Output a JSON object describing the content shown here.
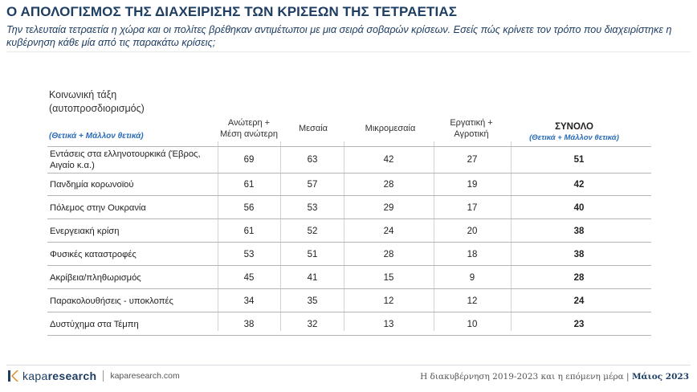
{
  "header": {
    "title": "Ο ΑΠΟΛΟΓΙΣΜΟΣ ΤΗΣ ΔΙΑΧΕΙΡΙΣΗΣ ΤΩΝ ΚΡΙΣΕΩΝ ΤΗΣ ΤΕΤΡΑΕΤΙΑΣ",
    "subtitle": "Την τελευταία τετραετία η χώρα και οι πολίτες βρέθηκαν αντιμέτωποι με μια σειρά σοβαρών κρίσεων. Εσείς πώς κρίνετε τον τρόπο που διαχειρίστηκε η κυβέρνηση κάθε μία από τις παρακάτω κρίσεις;"
  },
  "chart_data": {
    "type": "table",
    "group_title": "Κοινωνική τάξη (αυτοπροσδιορισμός)",
    "metric_note": "(Θετικά + Μάλλον θετικά)",
    "columns": [
      "Ανώτερη + Μέση ανώτερη",
      "Μεσαία",
      "Μικρομεσαία",
      "Εργατική + Αγροτική",
      "ΣΥΝΟΛΟ"
    ],
    "total_note": "(Θετικά + Μάλλον θετικά)",
    "rows": [
      {
        "label": "Εντάσεις στα ελληνοτουρκικά (Έβρος, Αιγαίο κ.α.)",
        "values": [
          69,
          63,
          42,
          27
        ],
        "total": 51
      },
      {
        "label": "Πανδημία κορωνοϊού",
        "values": [
          61,
          57,
          28,
          19
        ],
        "total": 42
      },
      {
        "label": "Πόλεμος στην Ουκρανία",
        "values": [
          56,
          53,
          29,
          17
        ],
        "total": 40
      },
      {
        "label": "Ενεργειακή κρίση",
        "values": [
          61,
          52,
          24,
          20
        ],
        "total": 38
      },
      {
        "label": "Φυσικές καταστροφές",
        "values": [
          53,
          51,
          28,
          18
        ],
        "total": 38
      },
      {
        "label": "Ακρίβεια/πληθωρισμός",
        "values": [
          45,
          41,
          15,
          9
        ],
        "total": 28
      },
      {
        "label": "Παρακολουθήσεις - υποκλοπές",
        "values": [
          34,
          35,
          12,
          12
        ],
        "total": 24
      },
      {
        "label": "Δυστύχημα στα Τέμπη",
        "values": [
          38,
          32,
          13,
          10
        ],
        "total": 23
      }
    ]
  },
  "footer": {
    "brand_light": "kapa",
    "brand_bold": "research",
    "url": "kaparesearch.com",
    "caption": "Η διακυβέρνηση 2019-2023 και η επόμενη μέρα |",
    "date": "Μάιος 2023"
  },
  "colors": {
    "title": "#1f3e63",
    "accent_note": "#2b6cb8",
    "logo_mark": "#e28a1e"
  }
}
